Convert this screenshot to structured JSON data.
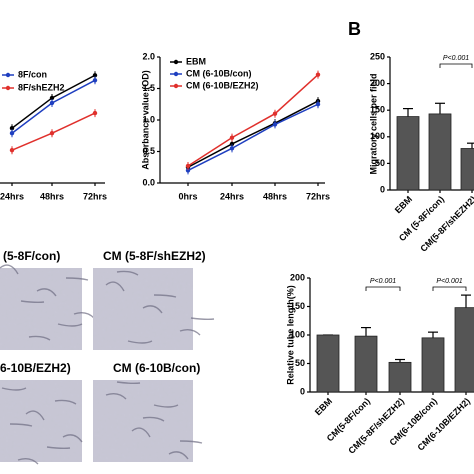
{
  "panel_label": "B",
  "images": [
    {
      "label": "(5-8F/con)"
    },
    {
      "label": "CM (5-8F/shEZH2)"
    },
    {
      "label": "6-10B/EZH2)"
    },
    {
      "label": "CM (6-10B/con)"
    }
  ],
  "chart_data": [
    {
      "type": "line",
      "categories": [
        "24hrs",
        "48hrs",
        "72hrs"
      ],
      "ylim": [
        0,
        2
      ],
      "series": [
        {
          "color": "#000000",
          "values": [
            0.87,
            1.35,
            1.71
          ]
        },
        {
          "name": "8F/con",
          "color": "#1f3fc0",
          "values": [
            0.79,
            1.27,
            1.63
          ]
        },
        {
          "name": "8F/shEZH2",
          "color": "#e0302c",
          "values": [
            0.52,
            0.79,
            1.11
          ]
        }
      ]
    },
    {
      "type": "line",
      "y_label": "Absorbance value (OD)",
      "categories": [
        "0hrs",
        "24hrs",
        "48hrs",
        "72hrs"
      ],
      "ylim": [
        0,
        2
      ],
      "yticks": [
        {
          "value": 0,
          "label": "0.0"
        },
        {
          "value": 0.5,
          "label": "0.5"
        },
        {
          "value": 1,
          "label": "1.0"
        },
        {
          "value": 1.5,
          "label": "1.5"
        },
        {
          "value": 2,
          "label": "2.0"
        }
      ],
      "series": [
        {
          "name": "EBM",
          "color": "#000000",
          "values": [
            0.25,
            0.62,
            0.95,
            1.3
          ]
        },
        {
          "name": "CM (6-10B/con)",
          "color": "#1f3fc0",
          "values": [
            0.2,
            0.55,
            0.93,
            1.25
          ]
        },
        {
          "name": "CM (6-10B/EZH2)",
          "color": "#e0302c",
          "values": [
            0.27,
            0.72,
            1.1,
            1.72
          ]
        }
      ]
    },
    {
      "type": "bar",
      "y_label": "Migratory cells per field",
      "categories": [
        "EBM",
        "CM (5-8F/con)",
        "CM(5-8F/shEZH2)"
      ],
      "values": [
        138,
        143,
        78
      ],
      "errors": [
        15,
        20,
        10
      ],
      "color": "#555555",
      "ylim": [
        0,
        250
      ],
      "yticks": [
        0,
        50,
        100,
        150,
        200,
        250
      ],
      "annotations": [
        "P<0.001"
      ]
    },
    {
      "type": "bar",
      "y_label": "Relative tube length(%)",
      "categories": [
        "EBM",
        "CM(5-8F/con)",
        "CM(5-8F/shEZH2)",
        "CM(6-10B/con)",
        "CM(6-10B/EZH2)"
      ],
      "values": [
        100,
        98,
        52,
        95,
        148
      ],
      "errors": [
        0,
        15,
        5,
        10,
        22
      ],
      "color": "#555555",
      "ylim": [
        0,
        200
      ],
      "yticks": [
        0,
        50,
        100,
        150,
        200
      ],
      "annotations": [
        "P<0.001",
        "P<0.001"
      ]
    }
  ]
}
